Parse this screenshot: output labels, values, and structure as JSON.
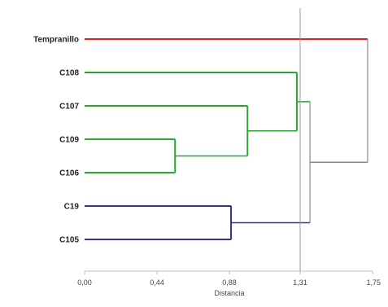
{
  "chart_data": {
    "type": "dendrogram",
    "xlabel": "Distancia",
    "xlim": [
      0,
      1.75
    ],
    "x_ticks": [
      {
        "value": 0.0,
        "label": "0,00"
      },
      {
        "value": 0.44,
        "label": "0,44"
      },
      {
        "value": 0.88,
        "label": "0,88"
      },
      {
        "value": 1.31,
        "label": "1,31"
      },
      {
        "value": 1.75,
        "label": "1,75"
      }
    ],
    "cutoff": 1.31,
    "leaves": [
      "Tempranillo",
      "C108",
      "C107",
      "C109",
      "C106",
      "C19",
      "C105"
    ],
    "merges": [
      {
        "id": "m1",
        "children": [
          "C109",
          "C106"
        ],
        "height": 0.55,
        "color": "#2aa532"
      },
      {
        "id": "m2",
        "children": [
          "C107",
          "m1"
        ],
        "height": 0.99,
        "color": "#2aa532"
      },
      {
        "id": "m3",
        "children": [
          "C108",
          "m2"
        ],
        "height": 1.29,
        "color": "#2aa532"
      },
      {
        "id": "m4",
        "children": [
          "C19",
          "C105"
        ],
        "height": 0.89,
        "color": "#34338f"
      },
      {
        "id": "m5",
        "children": [
          "m3",
          "m4"
        ],
        "height": 1.37,
        "color": "#8a8a8a"
      },
      {
        "id": "m6",
        "children": [
          "Tempranillo",
          "m5"
        ],
        "height": 1.72,
        "color": "#8a8a8a"
      }
    ],
    "leaf_colors": {
      "Tempranillo": "#e02020",
      "C108": "#2aa532",
      "C107": "#2aa532",
      "C109": "#2aa532",
      "C106": "#2aa532",
      "C19": "#34338f",
      "C105": "#34338f"
    }
  }
}
